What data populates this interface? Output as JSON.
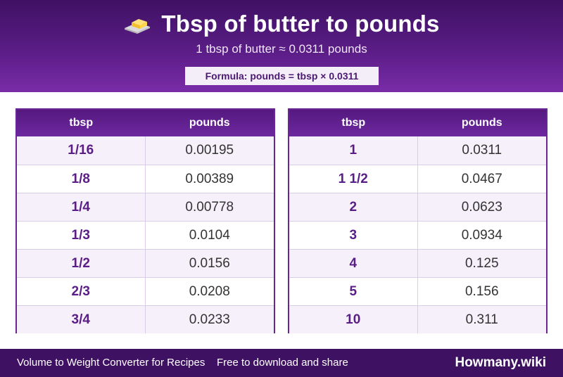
{
  "header": {
    "title": "Tbsp of butter to pounds",
    "subtitle": "1 tbsp of butter ≈ 0.0311 pounds",
    "formula": "Formula: pounds = tbsp × 0.0311",
    "icon": "butter-icon"
  },
  "tables": [
    {
      "col_a": "tbsp",
      "col_b": "pounds",
      "rows": [
        {
          "a": "1/16",
          "b": "0.00195"
        },
        {
          "a": "1/8",
          "b": "0.00389"
        },
        {
          "a": "1/4",
          "b": "0.00778"
        },
        {
          "a": "1/3",
          "b": "0.0104"
        },
        {
          "a": "1/2",
          "b": "0.0156"
        },
        {
          "a": "2/3",
          "b": "0.0208"
        },
        {
          "a": "3/4",
          "b": "0.0233"
        }
      ]
    },
    {
      "col_a": "tbsp",
      "col_b": "pounds",
      "rows": [
        {
          "a": "1",
          "b": "0.0311"
        },
        {
          "a": "1 1/2",
          "b": "0.0467"
        },
        {
          "a": "2",
          "b": "0.0623"
        },
        {
          "a": "3",
          "b": "0.0934"
        },
        {
          "a": "4",
          "b": "0.125"
        },
        {
          "a": "5",
          "b": "0.156"
        },
        {
          "a": "10",
          "b": "0.311"
        }
      ]
    }
  ],
  "footer": {
    "left": "Volume to Weight Converter for Recipes",
    "middle": "Free to download and share",
    "brand": "Howmany.wiki"
  },
  "colors": {
    "header_dark": "#3f1163",
    "accent": "#5a1d86",
    "row_alt": "#f5f0fa"
  }
}
